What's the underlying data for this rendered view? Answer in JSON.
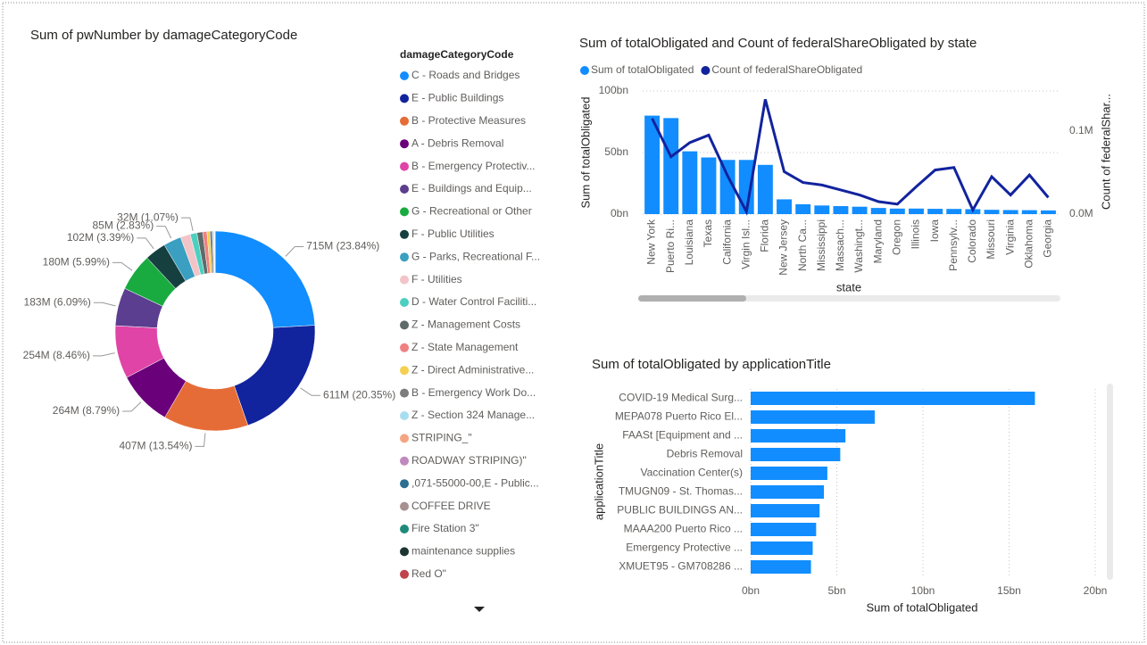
{
  "chart_data": [
    {
      "type": "donut",
      "title": "Sum of pwNumber by damageCategoryCode",
      "legend_title": "damageCategoryCode",
      "legend": "right",
      "categories": [
        "C - Roads and Bridges",
        "E - Public Buildings",
        "B - Protective Measures",
        "A - Debris Removal",
        "B - Emergency Protectiv...",
        "E - Buildings and Equip...",
        "G - Recreational or Other",
        "F - Public Utilities",
        "G - Parks, Recreational F...",
        "F - Utilities",
        "D - Water Control Faciliti...",
        "Z - Management Costs",
        "Z - State Management",
        "Z - Direct Administrative...",
        "B - Emergency Work Do...",
        "Z - Section 324 Manage...",
        "STRIPING_\"",
        "ROADWAY STRIPING)\"",
        ",071-55000-00,E - Public...",
        "COFFEE DRIVE",
        "Fire Station 3\"",
        "maintenance supplies",
        "Red O\""
      ],
      "values": [
        715,
        611,
        407,
        264,
        254,
        183,
        180,
        102,
        85,
        48,
        32,
        28,
        20,
        14,
        12,
        8,
        1,
        1,
        1,
        0.5,
        0.5,
        0.5,
        0.5
      ],
      "value_labels": [
        "715M (23.84%)",
        "611M (20.35%)",
        "407M (13.54%)",
        "264M (8.79%)",
        "254M (8.46%)",
        "183M (6.09%)",
        "180M (5.99%)",
        "102M (3.39%)",
        "85M (2.83%)",
        null,
        "32M (1.07%)",
        null,
        null,
        null,
        null,
        null,
        null,
        null,
        null,
        null,
        null,
        null,
        null
      ],
      "colors": [
        "#118DFF",
        "#12239E",
        "#E66C37",
        "#6B007B",
        "#E044A7",
        "#5B3E8F",
        "#1AAB40",
        "#15403F",
        "#3A9FC0",
        "#F2C4C8",
        "#4DCFC0",
        "#5E6B68",
        "#F08080",
        "#F5D04E",
        "#7D7D7D",
        "#A8DDF0",
        "#F5A582",
        "#C08ABE",
        "#2B6E8F",
        "#A89090",
        "#1F8A7A",
        "#1D3530",
        "#C0434B"
      ]
    },
    {
      "type": "combo",
      "title": "Sum of totalObligated and Count of federalShareObligated by state",
      "x_label": "state",
      "y_label": "Sum of totalObligated",
      "y2_label": "Count of federalShar...",
      "legend": "top-left",
      "grid": true,
      "categories": [
        "New York",
        "Puerto Ri...",
        "Louisiana",
        "Texas",
        "California",
        "Virgin Isl...",
        "Florida",
        "New Jersey",
        "North Ca...",
        "Mississippi",
        "Massach...",
        "Washingt...",
        "Maryland",
        "Oregon",
        "Illinois",
        "Iowa",
        "Pennsylv...",
        "Colorado",
        "Missouri",
        "Virginia",
        "Oklahoma",
        "Georgia"
      ],
      "series": [
        {
          "name": "Sum of totalObligated",
          "kind": "bar",
          "color": "#118DFF",
          "values": [
            80,
            78,
            51,
            46,
            44,
            44,
            40,
            12,
            8,
            7,
            6.5,
            6,
            5,
            4.5,
            4.5,
            4.3,
            4.2,
            4,
            3.5,
            3.3,
            3.2,
            3
          ]
        },
        {
          "name": "Count of federalShareObligated",
          "kind": "line",
          "axis": "y2",
          "color": "#12239E",
          "values": [
            0.115,
            0.069,
            0.086,
            0.095,
            0.046,
            0.003,
            0.138,
            0.051,
            0.038,
            0.035,
            0.029,
            0.023,
            0.015,
            0.012,
            0.033,
            0.053,
            0.056,
            0.005,
            0.045,
            0.023,
            0.047,
            0.02
          ]
        }
      ],
      "ylim": [
        0,
        100
      ],
      "yticks": [
        {
          "value": 0,
          "label": "0bn"
        },
        {
          "value": 50,
          "label": "50bn"
        },
        {
          "value": 100,
          "label": "100bn"
        }
      ],
      "y2lim": [
        0,
        0.148
      ],
      "y2ticks": [
        {
          "value": 0,
          "label": "0.0M"
        },
        {
          "value": 0.1,
          "label": "0.1M"
        }
      ]
    },
    {
      "type": "hbar",
      "title": "Sum of totalObligated by applicationTitle",
      "x_label": "Sum of totalObligated",
      "y_label": "applicationTitle",
      "color": "#118DFF",
      "grid": true,
      "categories": [
        "COVID-19 Medical Surg...",
        "MEPA078 Puerto Rico El...",
        "FAASt [Equipment and ...",
        "Debris Removal",
        "Vaccination Center(s)",
        "TMUGN09 - St. Thomas...",
        "PUBLIC BUILDINGS AN...",
        "MAAA200 Puerto Rico ...",
        "Emergency Protective ...",
        "XMUET95 - GM708286 ..."
      ],
      "values": [
        16.5,
        7.2,
        5.5,
        5.2,
        4.45,
        4.25,
        4.0,
        3.8,
        3.6,
        3.5
      ],
      "xlim": [
        0,
        20
      ],
      "xticks": [
        {
          "value": 0,
          "label": "0bn"
        },
        {
          "value": 5,
          "label": "5bn"
        },
        {
          "value": 10,
          "label": "10bn"
        },
        {
          "value": 15,
          "label": "15bn"
        },
        {
          "value": 20,
          "label": "20bn"
        }
      ]
    }
  ]
}
